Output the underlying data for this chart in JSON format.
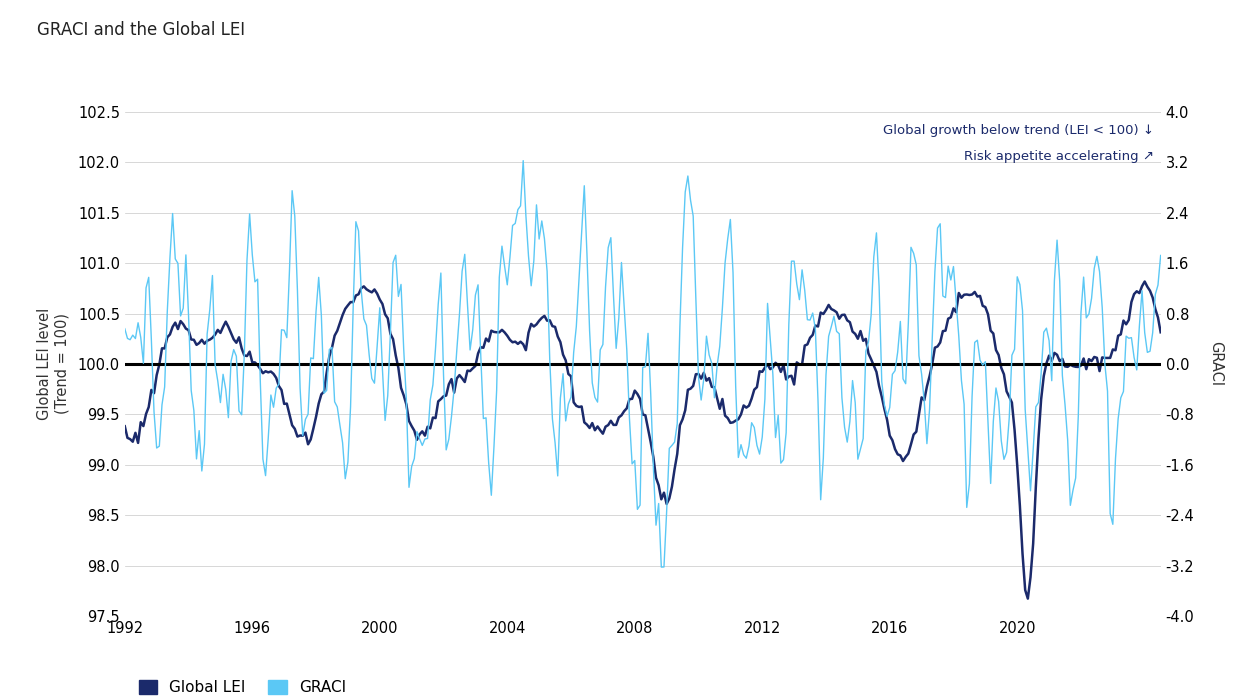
{
  "title": "GRACI and the Global LEI",
  "ylabel_left": "Global LEI level\n(Trend = 100)",
  "ylabel_right": "GRACI",
  "ylim_left": [
    97.5,
    102.5
  ],
  "ylim_right": [
    -4.0,
    4.0
  ],
  "yticks_left": [
    97.5,
    98.0,
    98.5,
    99.0,
    99.5,
    100.0,
    100.5,
    101.0,
    101.5,
    102.0,
    102.5
  ],
  "yticks_right": [
    -4.0,
    -3.2,
    -2.4,
    -1.6,
    -0.8,
    0.0,
    0.8,
    1.6,
    2.4,
    3.2,
    4.0
  ],
  "xlim": [
    1992,
    2024.5
  ],
  "xticks": [
    1992,
    1996,
    2000,
    2004,
    2008,
    2012,
    2016,
    2020
  ],
  "lei_color": "#1b2a6b",
  "graci_color": "#5bc8f5",
  "zero_line_color": "#000000",
  "annotation1": "Global growth below trend (LEI < 100) ↓",
  "annotation2": "Risk appetite accelerating ↗",
  "legend_lei": "Global LEI",
  "legend_graci": "GRACI",
  "background_color": "#ffffff",
  "grid_color": "#c8c8c8"
}
